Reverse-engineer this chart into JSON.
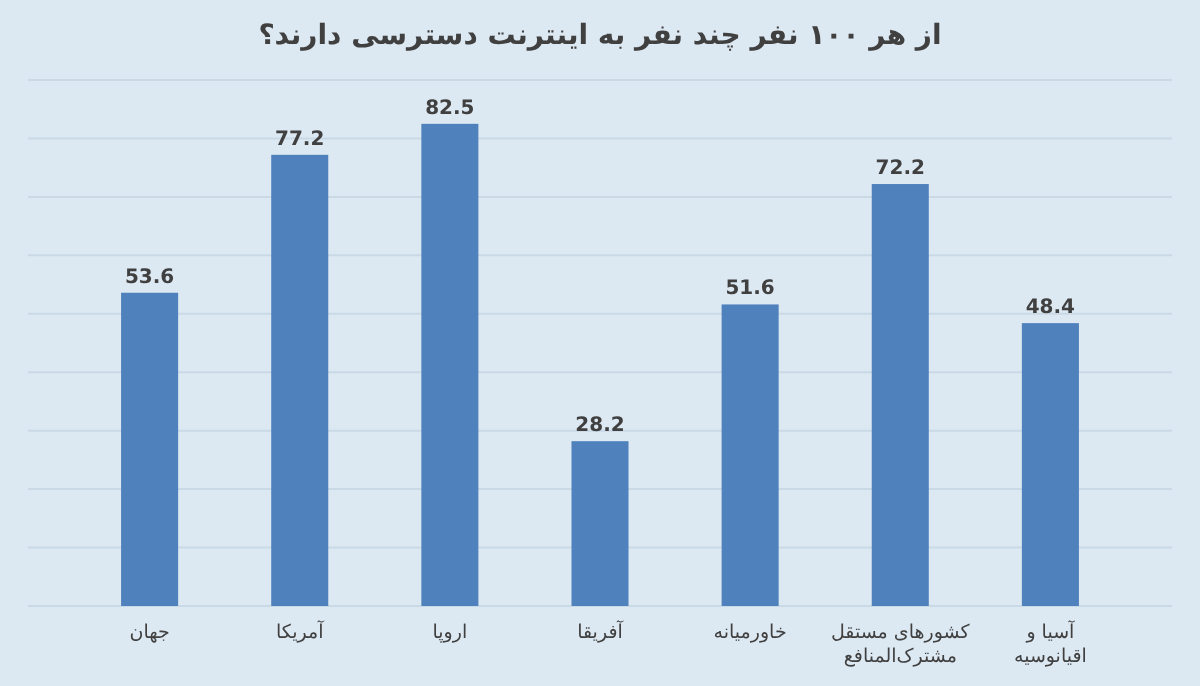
{
  "chart_data": {
    "type": "bar",
    "title": "از هر ۱۰۰ نفر چند نفر به اینترنت دسترسی دارند؟",
    "categories": [
      "جهان",
      "آمریکا",
      "اروپا",
      "آفریقا",
      "خاورمیانه",
      "کشورهای مستقل مشترک‌المنافع",
      "آسیا و اقیانوسیه"
    ],
    "values": [
      53.6,
      77.2,
      82.5,
      28.2,
      51.6,
      72.2,
      48.4
    ],
    "color": "#4f81bd",
    "data_labels": true,
    "grid": "y",
    "ylim": [
      0,
      90
    ],
    "yticks": [
      {
        "value": 0,
        "label": null
      },
      {
        "value": 10,
        "label": null
      },
      {
        "value": 20,
        "label": null
      },
      {
        "value": 30,
        "label": null
      },
      {
        "value": 40,
        "label": null
      },
      {
        "value": 50,
        "label": null
      },
      {
        "value": 60,
        "label": null
      },
      {
        "value": 70,
        "label": null
      },
      {
        "value": 80,
        "label": null
      },
      {
        "value": 90,
        "label": null
      }
    ],
    "tick_labels": "x"
  }
}
